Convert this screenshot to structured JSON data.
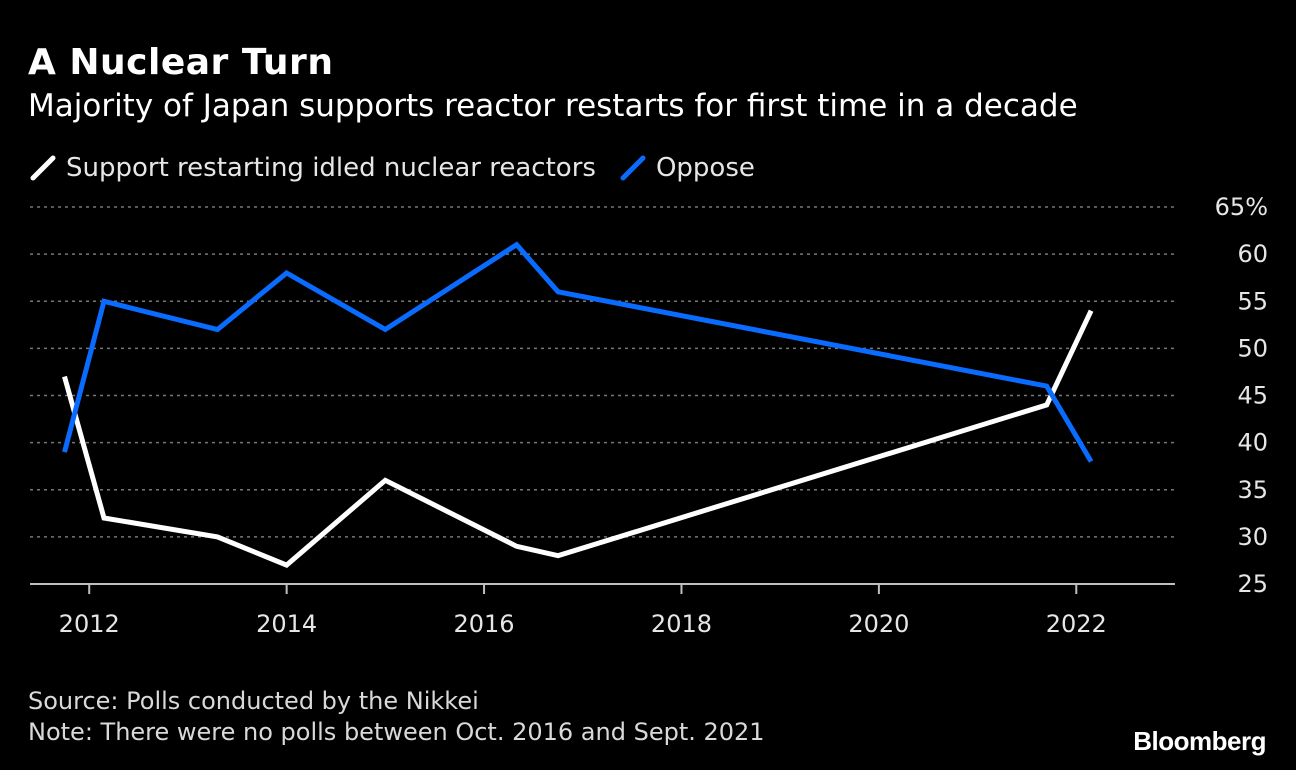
{
  "header": {
    "title": "A Nuclear Turn",
    "subtitle": "Majority of Japan supports reactor restarts for first time in a decade"
  },
  "legend": [
    {
      "label": "Support restarting idled nuclear reactors",
      "color": "#ffffff"
    },
    {
      "label": "Oppose",
      "color": "#0a6cff"
    }
  ],
  "chart_data": {
    "type": "line",
    "title": "A Nuclear Turn",
    "subtitle": "Majority of Japan supports reactor restarts for first time in a decade",
    "xlabel": "",
    "ylabel": "",
    "xlim": [
      2011.4,
      2023.0
    ],
    "ylim": [
      25,
      65
    ],
    "grid": true,
    "x_ticks": [
      2012,
      2014,
      2016,
      2018,
      2020,
      2022
    ],
    "x_tick_labels": [
      "2012",
      "2014",
      "2016",
      "2018",
      "2020",
      "2022"
    ],
    "y_ticks": [
      25,
      30,
      35,
      40,
      45,
      50,
      55,
      60,
      65
    ],
    "y_tick_labels": [
      "25",
      "30",
      "35",
      "40",
      "45",
      "50",
      "55",
      "60",
      "65%"
    ],
    "series": [
      {
        "name": "Support restarting idled nuclear reactors",
        "color": "#ffffff",
        "x": [
          2011.75,
          2012.15,
          2013.3,
          2014.0,
          2015.0,
          2016.33,
          2016.75,
          2021.7,
          2022.15
        ],
        "y": [
          47,
          32,
          30,
          27,
          36,
          29,
          28,
          44,
          54
        ]
      },
      {
        "name": "Oppose",
        "color": "#0a6cff",
        "x": [
          2011.75,
          2012.15,
          2013.3,
          2014.0,
          2015.0,
          2016.33,
          2016.75,
          2021.7,
          2022.15
        ],
        "y": [
          39,
          55,
          52,
          58,
          52,
          61,
          56,
          46,
          38
        ]
      }
    ]
  },
  "footer": {
    "source": "Source: Polls conducted by the Nikkei",
    "note": "Note: There were no polls between Oct. 2016 and Sept. 2021"
  },
  "brand": "Bloomberg"
}
